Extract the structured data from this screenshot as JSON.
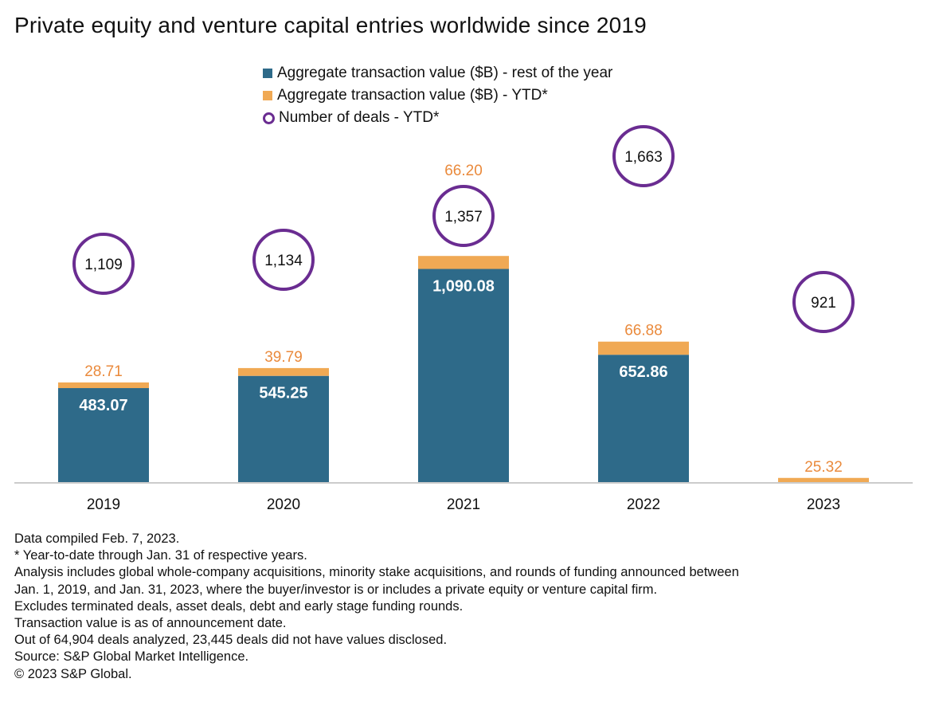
{
  "title": "Private equity and venture capital entries worldwide since 2019",
  "colors": {
    "rest_of_year": "#2e6a89",
    "ytd": "#f0a954",
    "ytd_label": "#ea8a3c",
    "deals_ring": "#6a2c91",
    "inner_label": "#ffffff",
    "axis": "#cccccc"
  },
  "legend": [
    {
      "label": "Aggregate transaction value ($B) - rest of the year",
      "marker": "square",
      "color": "#2e6a89"
    },
    {
      "label": "Aggregate transaction value ($B) - YTD*",
      "marker": "square",
      "color": "#f0a954"
    },
    {
      "label": "Number of deals - YTD*",
      "marker": "ring",
      "color": "#6a2c91"
    }
  ],
  "chart_data": {
    "type": "bar",
    "stacked": true,
    "title": "Private equity and venture capital entries worldwide since 2019",
    "categories": [
      "2019",
      "2020",
      "2021",
      "2022",
      "2023"
    ],
    "series": [
      {
        "name": "Aggregate transaction value ($B) - rest of the year",
        "values": [
          483.07,
          545.25,
          1090.08,
          652.86,
          null
        ],
        "value_labels": [
          "483.07",
          "545.25",
          "1,090.08",
          "652.86",
          null
        ]
      },
      {
        "name": "Aggregate transaction value ($B) - YTD*",
        "values": [
          28.71,
          39.79,
          66.2,
          66.88,
          25.32
        ],
        "value_labels": [
          "28.71",
          "39.79",
          "66.20",
          "66.88",
          "25.32"
        ]
      }
    ],
    "secondary": {
      "name": "Number of deals - YTD*",
      "marker": "ring",
      "values": [
        1109,
        1134,
        1357,
        1663,
        921
      ],
      "value_labels": [
        "1,109",
        "1,134",
        "1,357",
        "1,663",
        "921"
      ],
      "ylim": [
        0,
        2000
      ]
    },
    "ylim": [
      0,
      1200
    ],
    "xlabel": "",
    "ylabel": "",
    "grid": false,
    "legend_position": "top"
  },
  "notes": [
    "Data compiled Feb. 7, 2023.",
    "* Year-to-date through Jan. 31 of respective years.",
    "Analysis includes global whole-company acquisitions, minority stake acquisitions, and rounds of funding announced between",
    "Jan. 1, 2019, and Jan. 31, 2023, where the buyer/investor is or includes a private equity or venture capital firm.",
    "Excludes terminated deals, asset deals, debt and early stage funding rounds.",
    "Transaction value is as of announcement date.",
    "Out of 64,904 deals analyzed, 23,445 deals did not have values disclosed.",
    "Source: S&P Global Market Intelligence.",
    "© 2023 S&P Global."
  ]
}
